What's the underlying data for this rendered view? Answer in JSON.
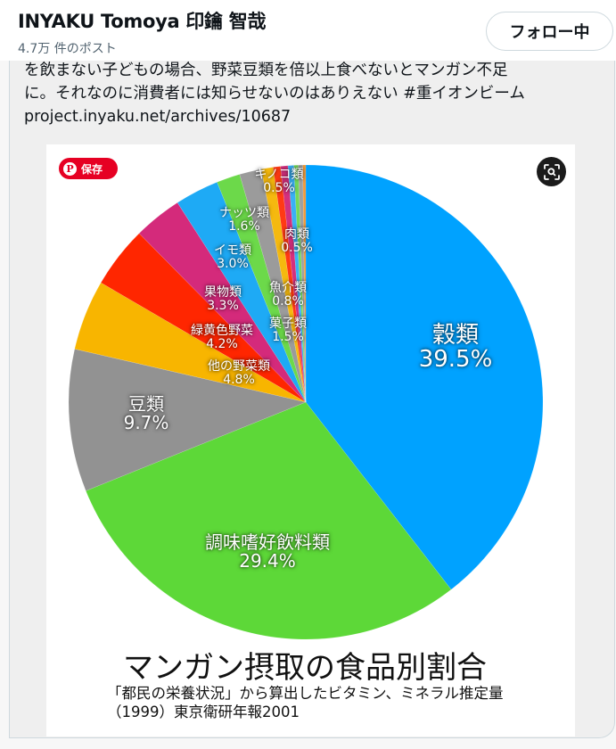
{
  "header": {
    "name": "INYAKU Tomoya 印鑰 智哉",
    "posts": "4.7万 件のポスト",
    "follow_label": "フォロー中"
  },
  "tweet": {
    "lines": [
      "を飲まない子どもの場合、野菜豆類を倍以上食べないとマンガン不足",
      "に。それなのに消費者には知らせないのはありえない #重イオンビーム",
      "project.inyaku.net/archives/10687"
    ]
  },
  "image": {
    "pin_save_label": "保存",
    "pin_icon": "pinterest-icon",
    "lens_icon": "visual-search-icon"
  },
  "chart_data": {
    "type": "pie",
    "title": "マンガン摂取の食品別割合",
    "subtitle_lines": [
      "「都民の栄養状況」から算出したビタミン、ミネラル推定量",
      "（1999）東京衛研年報2001"
    ],
    "slices": [
      {
        "label": "穀類",
        "value": 39.5,
        "color": "#00a2ff"
      },
      {
        "label": "調味嗜好飲料類",
        "value": 29.4,
        "color": "#5dd838"
      },
      {
        "label": "豆類",
        "value": 9.7,
        "color": "#929292"
      },
      {
        "label": "他の野菜類",
        "value": 4.8,
        "color": "#f8b500"
      },
      {
        "label": "緑黄色野菜",
        "value": 4.2,
        "color": "#ff2600"
      },
      {
        "label": "果物類",
        "value": 3.3,
        "color": "#d42a7b"
      },
      {
        "label": "イモ類",
        "value": 3.0,
        "color": "#1eaaf5"
      },
      {
        "label": "ナッツ類",
        "value": 1.6,
        "color": "#6cd94a"
      },
      {
        "label": "菓子類",
        "value": 1.5,
        "color": "#9b9b9b"
      },
      {
        "label": "魚介類",
        "value": 0.8,
        "color": "#f5b90f"
      },
      {
        "label": "肉類",
        "value": 0.5,
        "color": "#ff3a14"
      },
      {
        "label": "キノコ類",
        "value": 0.5,
        "color": "#d4307e"
      },
      {
        "label": "",
        "value": 0.4,
        "color": "#3ab0f5"
      },
      {
        "label": "",
        "value": 0.3,
        "color": "#74d95a"
      },
      {
        "label": "",
        "value": 0.3,
        "color": "#a0a0a0"
      },
      {
        "label": "",
        "value": 0.2,
        "color": "#f09a3a"
      }
    ],
    "display_labels": {
      "grain": {
        "name": "穀類",
        "pct": "39.5%"
      },
      "seasoning": {
        "name": "調味嗜好飲料類",
        "pct": "29.4%"
      },
      "beans": {
        "name": "豆類",
        "pct": "9.7%"
      },
      "other_veg": {
        "name": "他の野菜類",
        "pct": "4.8%"
      },
      "gy_veg": {
        "name": "緑黄色野菜",
        "pct": "4.2%"
      },
      "fruit": {
        "name": "果物類",
        "pct": "3.3%"
      },
      "potato": {
        "name": "イモ類",
        "pct": "3.0%"
      },
      "nuts": {
        "name": "ナッツ類",
        "pct": "1.6%"
      },
      "sweets": {
        "name": "菓子類",
        "pct": "1.5%"
      },
      "fish": {
        "name": "魚介類",
        "pct": "0.8%"
      },
      "meat": {
        "name": "肉類",
        "pct": "0.5%"
      },
      "mushroom": {
        "name": "キノコ類",
        "pct": "0.5%"
      }
    }
  }
}
